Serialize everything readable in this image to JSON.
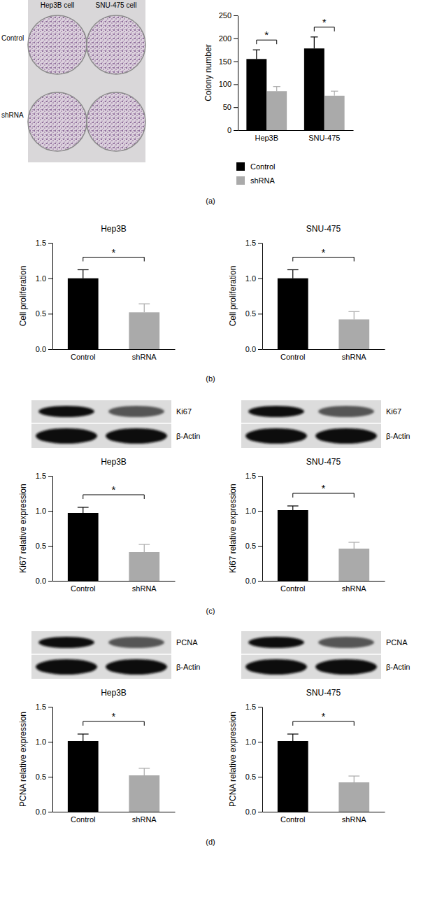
{
  "figure": {
    "panel_labels": [
      "(a)",
      "(b)",
      "(c)",
      "(d)"
    ],
    "colony_photo": {
      "columns": [
        "Hep3B cell",
        "SNU-475 cell"
      ],
      "rows": [
        "Control",
        "shRNA"
      ]
    },
    "blots": [
      {
        "target": "Ki67",
        "loading": "β-Actin"
      },
      {
        "target": "Ki67",
        "loading": "β-Actin"
      },
      {
        "target": "PCNA",
        "loading": "β-Actin"
      },
      {
        "target": "PCNA",
        "loading": "β-Actin"
      }
    ]
  },
  "chart_data": [
    {
      "type": "bar",
      "y_label": "Colony number",
      "categories": [
        "Hep3B",
        "SNU-475"
      ],
      "series": [
        {
          "name": "Control",
          "color": "#000000",
          "values": [
            155,
            178
          ],
          "errors": [
            20,
            25
          ]
        },
        {
          "name": "shRNA",
          "color": "#aaaaaa",
          "values": [
            85,
            75
          ],
          "errors": [
            10,
            10
          ]
        }
      ],
      "ylim": [
        0,
        250
      ],
      "yticks": [
        0,
        50,
        100,
        150,
        200,
        250
      ],
      "legend": "bottom",
      "annotations": [
        "*",
        "*"
      ]
    },
    {
      "type": "bar",
      "title": "Hep3B",
      "y_label": "Cell proliferation",
      "categories": [
        "Control",
        "shRNA"
      ],
      "values": [
        1.0,
        0.52
      ],
      "errors": [
        0.12,
        0.12
      ],
      "colors": [
        "#000000",
        "#aaaaaa"
      ],
      "ylim": [
        0,
        1.5
      ],
      "yticks": [
        {
          "value": 0,
          "label": "0.0"
        },
        0.5,
        {
          "value": 1,
          "label": "1.0"
        },
        1.5
      ],
      "annotations": [
        "*"
      ]
    },
    {
      "type": "bar",
      "title": "SNU-475",
      "y_label": "Cell proliferation",
      "categories": [
        "Control",
        "shRNA"
      ],
      "values": [
        1.0,
        0.42
      ],
      "errors": [
        0.12,
        0.11
      ],
      "colors": [
        "#000000",
        "#aaaaaa"
      ],
      "ylim": [
        0,
        1.5
      ],
      "yticks": [
        {
          "value": 0,
          "label": "0.0"
        },
        0.5,
        {
          "value": 1,
          "label": "1.0"
        },
        1.5
      ],
      "annotations": [
        "*"
      ]
    },
    {
      "type": "bar",
      "title": "Hep3B",
      "y_label": "Ki67 relative expression",
      "categories": [
        "Control",
        "shRNA"
      ],
      "values": [
        0.97,
        0.41
      ],
      "errors": [
        0.08,
        0.11
      ],
      "colors": [
        "#000000",
        "#aaaaaa"
      ],
      "ylim": [
        0,
        1.5
      ],
      "yticks": [
        {
          "value": 0,
          "label": "0.0"
        },
        0.5,
        {
          "value": 1,
          "label": "1.0"
        },
        1.5
      ],
      "annotations": [
        "*"
      ]
    },
    {
      "type": "bar",
      "title": "SNU-475",
      "y_label": "Ki67 relative expression",
      "categories": [
        "Control",
        "shRNA"
      ],
      "values": [
        1.01,
        0.46
      ],
      "errors": [
        0.06,
        0.09
      ],
      "colors": [
        "#000000",
        "#aaaaaa"
      ],
      "ylim": [
        0,
        1.5
      ],
      "yticks": [
        {
          "value": 0,
          "label": "0.0"
        },
        0.5,
        {
          "value": 1,
          "label": "1.0"
        },
        1.5
      ],
      "annotations": [
        "*"
      ]
    },
    {
      "type": "bar",
      "title": "Hep3B",
      "y_label": "PCNA relative expression",
      "categories": [
        "Control",
        "shRNA"
      ],
      "values": [
        1.01,
        0.52
      ],
      "errors": [
        0.1,
        0.1
      ],
      "colors": [
        "#000000",
        "#aaaaaa"
      ],
      "ylim": [
        0,
        1.5
      ],
      "yticks": [
        {
          "value": 0,
          "label": "0.0"
        },
        0.5,
        {
          "value": 1,
          "label": "1.0"
        },
        1.5
      ],
      "annotations": [
        "*"
      ]
    },
    {
      "type": "bar",
      "title": "SNU-475",
      "y_label": "PCNA relative expression",
      "categories": [
        "Control",
        "shRNA"
      ],
      "values": [
        1.01,
        0.42
      ],
      "errors": [
        0.1,
        0.09
      ],
      "colors": [
        "#000000",
        "#aaaaaa"
      ],
      "ylim": [
        0,
        1.5
      ],
      "yticks": [
        {
          "value": 0,
          "label": "0.0"
        },
        0.5,
        {
          "value": 1,
          "label": "1.0"
        },
        1.5
      ],
      "annotations": [
        "*"
      ]
    }
  ]
}
